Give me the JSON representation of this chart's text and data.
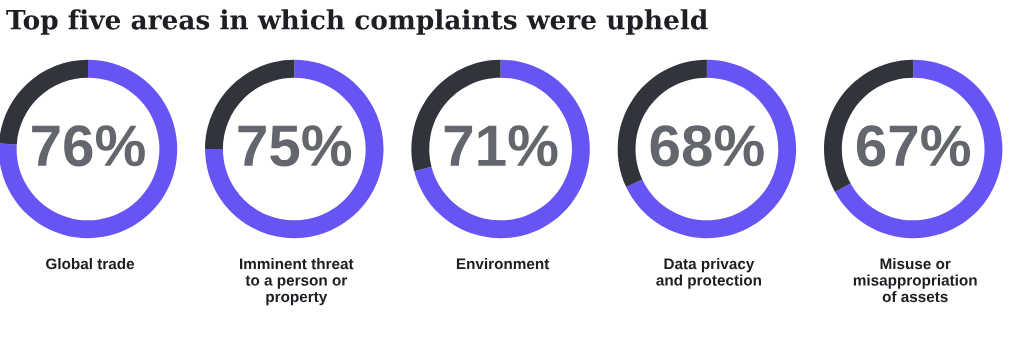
{
  "chart_data": [
    {
      "type": "donut",
      "title": "Top five areas in which complaints were upheld",
      "xlabel": "Global trade",
      "categories": [
        null,
        null
      ],
      "values": [
        76,
        24
      ],
      "colors": [
        "#6655f2",
        "#31343b"
      ],
      "value_labels": [
        "76%",
        null
      ]
    },
    {
      "type": "donut",
      "xlabel": "Imminent threat\nto a person or\nproperty",
      "categories": [
        null,
        null
      ],
      "values": [
        75,
        25
      ],
      "colors": [
        "#6655f2",
        "#31343b"
      ],
      "value_labels": [
        "75%",
        null
      ]
    },
    {
      "type": "donut",
      "xlabel": "Environment",
      "categories": [
        null,
        null
      ],
      "values": [
        71,
        29
      ],
      "colors": [
        "#6655f2",
        "#31343b"
      ],
      "value_labels": [
        "71%",
        null
      ]
    },
    {
      "type": "donut",
      "xlabel": "Data privacy\nand protection",
      "categories": [
        null,
        null
      ],
      "values": [
        68,
        32
      ],
      "colors": [
        "#6655f2",
        "#31343b"
      ],
      "value_labels": [
        "68%",
        null
      ]
    },
    {
      "type": "donut",
      "xlabel": "Misuse or\nmisappropriation\nof assets",
      "categories": [
        null,
        null
      ],
      "values": [
        67,
        33
      ],
      "colors": [
        "#6655f2",
        "#31343b"
      ],
      "value_labels": [
        "67%",
        null
      ]
    }
  ]
}
